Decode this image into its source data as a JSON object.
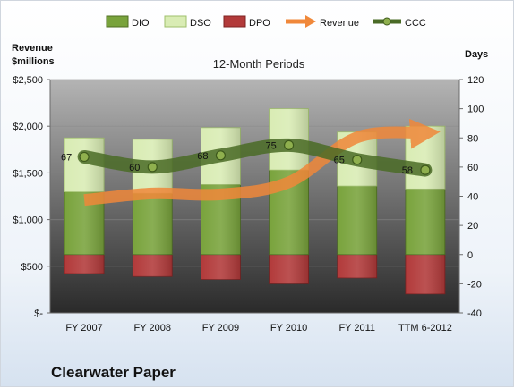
{
  "colors": {
    "dio": "#79a33c",
    "dso": "#d9ecb4",
    "dpo": "#b23a3a",
    "revenue": "#f0883a",
    "ccc": "#4a6b26",
    "plot_top": "#b4b4b4",
    "plot_bottom": "#2a2a2a"
  },
  "chart_data": {
    "type": "bar",
    "title": "12-Month Periods",
    "categories": [
      "FY 2007",
      "FY 2008",
      "FY 2009",
      "FY 2010",
      "FY 2011",
      "TTM 6-2012"
    ],
    "legend_position": "top",
    "grid": true,
    "left_axis": {
      "label_line1": "Revenue",
      "label_line2": "$millions",
      "range": [
        0,
        2500
      ],
      "ticks": [
        0,
        500,
        1000,
        1500,
        2000,
        2500
      ],
      "tick_labels": [
        "$-",
        "$500",
        "$1,000",
        "$1,500",
        "$2,000",
        "$2,500"
      ]
    },
    "right_axis": {
      "label": "Days",
      "range": [
        -40,
        120
      ],
      "ticks": [
        -40,
        -20,
        0,
        20,
        40,
        60,
        80,
        100,
        120
      ],
      "tick_labels": [
        "-40",
        "-20",
        "0",
        "20",
        "40",
        "60",
        "80",
        "100",
        "120"
      ]
    },
    "series": [
      {
        "name": "DIO",
        "kind": "bar",
        "axis": "right",
        "values": [
          43,
          42,
          48,
          58,
          47,
          45
        ]
      },
      {
        "name": "DSO",
        "kind": "bar",
        "axis": "right",
        "values": [
          37,
          37,
          39,
          42,
          37,
          43
        ]
      },
      {
        "name": "DPO",
        "kind": "bar",
        "axis": "right",
        "values": [
          -13,
          -15,
          -17,
          -20,
          -16,
          -27
        ]
      },
      {
        "name": "Revenue",
        "kind": "line",
        "axis": "left",
        "values": [
          1210,
          1280,
          1270,
          1400,
          1880,
          1930
        ]
      },
      {
        "name": "CCC",
        "kind": "line",
        "axis": "right",
        "values": [
          67,
          60,
          68,
          75,
          65,
          58
        ],
        "labels": [
          "67",
          "60",
          "68",
          "75",
          "65",
          "58"
        ]
      }
    ]
  },
  "footer": {
    "company": "Clearwater Paper"
  }
}
